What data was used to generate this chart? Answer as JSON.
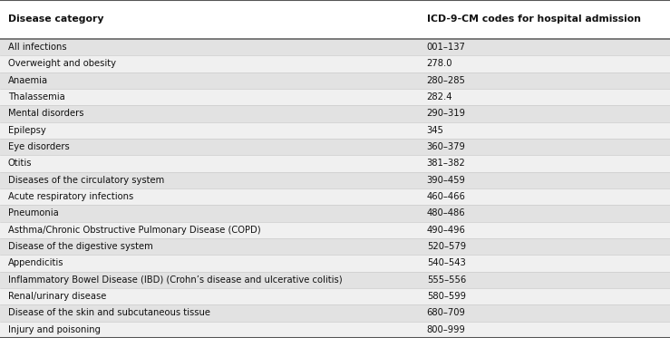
{
  "rows": [
    [
      "All infections",
      "001–137"
    ],
    [
      "Overweight and obesity",
      "278.0"
    ],
    [
      "Anaemia",
      "280–285"
    ],
    [
      "Thalassemia",
      "282.4"
    ],
    [
      "Mental disorders",
      "290–319"
    ],
    [
      "Epilepsy",
      "345"
    ],
    [
      "Eye disorders",
      "360–379"
    ],
    [
      "Otitis",
      "381–382"
    ],
    [
      "Diseases of the circulatory system",
      "390–459"
    ],
    [
      "Acute respiratory infections",
      "460–466"
    ],
    [
      "Pneumonia",
      "480–486"
    ],
    [
      "Asthma/Chronic Obstructive Pulmonary Disease (COPD)",
      "490–496"
    ],
    [
      "Disease of the digestive system",
      "520–579"
    ],
    [
      "Appendicitis",
      "540–543"
    ],
    [
      "Inflammatory Bowel Disease (IBD) (Crohn’s disease and ulcerative colitis)",
      "555–556"
    ],
    [
      "Renal/urinary disease",
      "580–599"
    ],
    [
      "Disease of the skin and subcutaneous tissue",
      "680–709"
    ],
    [
      "Injury and poisoning",
      "800–999"
    ]
  ],
  "col_headers": [
    "Disease category",
    "ICD-9-CM codes for hospital admission"
  ],
  "col_split": 0.625,
  "header_bg": "#ffffff",
  "row_bg_odd": "#e2e2e2",
  "row_bg_even": "#f0f0f0",
  "top_border_color": "#555555",
  "bottom_border_color": "#555555",
  "row_line_color": "#cccccc",
  "header_line_color": "#666666",
  "header_font_size": 7.8,
  "row_font_size": 7.2,
  "text_color": "#111111",
  "fig_width": 7.39,
  "fig_height": 3.73,
  "dpi": 100
}
